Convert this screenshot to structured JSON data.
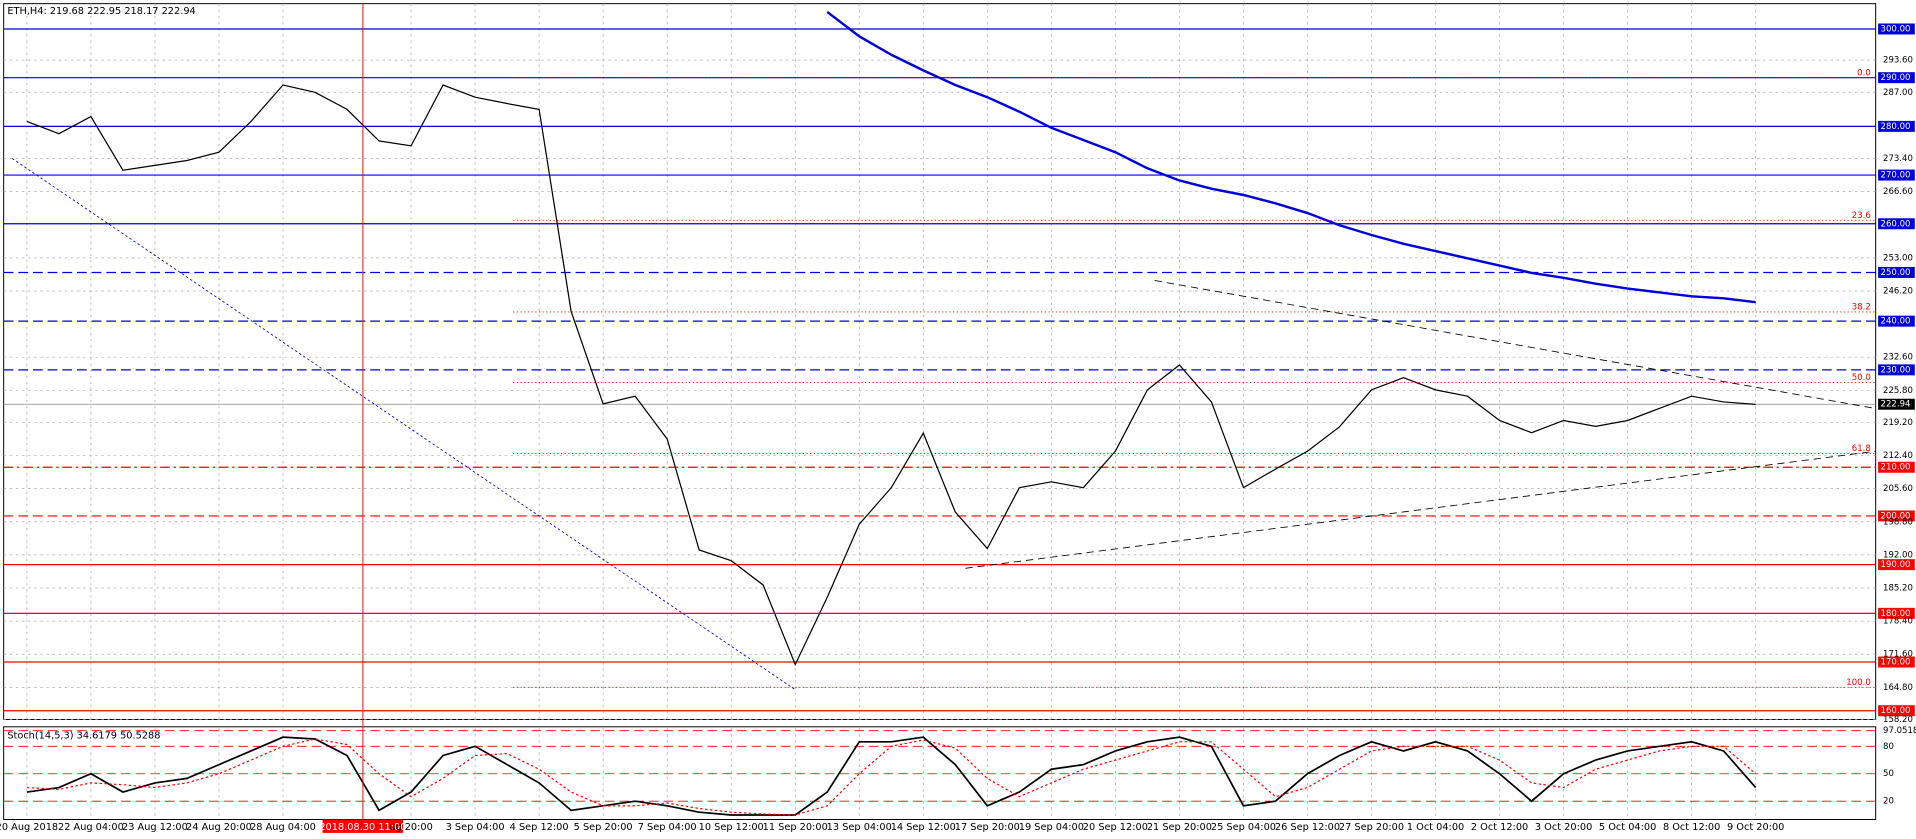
{
  "header": "ETH,H4: 219.68 222.95 218.17 222.94",
  "crosshair_label": "2018.08.30 11:00",
  "chart_data": [
    {
      "type": "line",
      "categories": [
        "20 Aug 2018",
        null,
        "22 Aug 04:00",
        null,
        "23 Aug 12:00",
        null,
        "24 Aug 20:00",
        null,
        "28 Aug 04:00",
        null,
        null,
        null,
        "ug 20:00",
        null,
        "3 Sep 04:00",
        null,
        "4 Sep 12:00",
        null,
        "5 Sep 20:00",
        null,
        "7 Sep 04:00",
        null,
        "10 Sep 12:00",
        null,
        "11 Sep 20:00",
        null,
        "13 Sep 04:00",
        null,
        "14 Sep 12:00",
        null,
        "17 Sep 20:00",
        null,
        "19 Sep 04:00",
        null,
        "20 Sep 12:00",
        null,
        "21 Sep 20:00",
        null,
        "25 Sep 04:00",
        null,
        "26 Sep 12:00",
        null,
        "27 Sep 20:00",
        null,
        "1 Oct 04:00",
        null,
        "2 Oct 12:00",
        null,
        "3 Oct 20:00",
        null,
        "5 Oct 04:00",
        null,
        "8 Oct 12:00",
        null,
        "9 Oct 20:00"
      ],
      "series": [
        {
          "color": "#000000",
          "values": [
            281,
            278.5,
            282,
            271,
            272,
            273,
            274.7,
            281,
            288.5,
            287,
            283.5,
            277,
            276,
            288.5,
            286,
            284.7,
            283.5,
            242,
            223,
            224.6,
            215.8,
            193,
            190.8,
            185.8,
            169.5,
            183.3,
            198.3,
            205.8,
            217,
            200.8,
            193.3,
            205.8,
            207,
            205.8,
            213.3,
            225.9,
            231,
            223.4,
            205.8,
            209.6,
            213.3,
            218.3,
            225.9,
            228.4,
            225.9,
            224.6,
            219.6,
            217.1,
            219.6,
            218.4,
            219.6,
            222.1,
            224.6,
            223.4,
            222.9
          ]
        },
        {
          "color": "#0000dd",
          "values": [
            null,
            null,
            null,
            null,
            null,
            null,
            null,
            null,
            null,
            null,
            null,
            null,
            null,
            null,
            null,
            null,
            null,
            null,
            null,
            null,
            null,
            null,
            null,
            null,
            null,
            303.5,
            298.5,
            294.7,
            291.5,
            288.5,
            286,
            283,
            279.7,
            277.2,
            274.7,
            271.4,
            268.9,
            267.2,
            265.9,
            264.2,
            262.2,
            259.7,
            257.7,
            255.9,
            254.4,
            252.9,
            251.4,
            249.9,
            248.9,
            247.7,
            246.7,
            245.9,
            245.1,
            244.7,
            243.9
          ]
        }
      ],
      "ylim": [
        158.2,
        305.2
      ],
      "yticks": [
        {
          "value": 293.6,
          "label": "293.60"
        },
        {
          "value": 287,
          "label": "287.00"
        },
        {
          "value": 273.4,
          "label": "273.40"
        },
        {
          "value": 266.6,
          "label": "266.60"
        },
        {
          "value": 253,
          "label": "253.00"
        },
        {
          "value": 246.2,
          "label": "246.20"
        },
        {
          "value": 232.6,
          "label": "232.60"
        },
        {
          "value": 225.8,
          "label": "225.80"
        },
        {
          "value": 219.2,
          "label": "219.20"
        },
        {
          "value": 212.4,
          "label": "212.40"
        },
        {
          "value": 205.6,
          "label": "205.60"
        },
        {
          "value": 198.8,
          "label": "198.80"
        },
        {
          "value": 192,
          "label": "192.00"
        },
        {
          "value": 185.2,
          "label": "185.20"
        },
        {
          "value": 178.4,
          "label": "178.40"
        },
        {
          "value": 171.6,
          "label": "171.60"
        },
        {
          "value": 164.8,
          "label": "164.80"
        },
        {
          "value": 158.2,
          "label": "158.20"
        }
      ],
      "levels": [
        {
          "value": 300,
          "label": "300.00",
          "color": "#0000dd",
          "style": "solid"
        },
        {
          "value": 290,
          "label": "290.00",
          "color": "#0000dd",
          "style": "solid"
        },
        {
          "value": 280,
          "label": "280.00",
          "color": "#0000dd",
          "style": "solid"
        },
        {
          "value": 270,
          "label": "270.00",
          "color": "#0000dd",
          "style": "solid"
        },
        {
          "value": 260,
          "label": "260.00",
          "color": "#0000dd",
          "style": "solid"
        },
        {
          "value": 250,
          "label": "250.00",
          "color": "#0000dd",
          "style": "dashed"
        },
        {
          "value": 240,
          "label": "240.00",
          "color": "#0000dd",
          "style": "dashed"
        },
        {
          "value": 230,
          "label": "230.00",
          "color": "#0000dd",
          "style": "dashed"
        },
        {
          "value": 210,
          "label": "210.00",
          "color": "#ff0000",
          "style": "dashdot"
        },
        {
          "value": 200,
          "label": "200.00",
          "color": "#ff0000",
          "style": "dashed"
        },
        {
          "value": 190,
          "label": "190.00",
          "color": "#ff0000",
          "style": "solid"
        },
        {
          "value": 180,
          "label": "180.00",
          "color": "#ff0000",
          "style": "solid"
        },
        {
          "value": 170,
          "label": "170.00",
          "color": "#ff0000",
          "style": "solid"
        },
        {
          "value": 160,
          "label": "160.00",
          "color": "#ff0000",
          "style": "solid"
        }
      ],
      "fib_levels": [
        {
          "value": 290,
          "label": "0.0"
        },
        {
          "value": 260.7,
          "label": "23.6"
        },
        {
          "value": 241.9,
          "label": "38.2"
        },
        {
          "value": 227.4,
          "label": "50.0"
        },
        {
          "value": 212.8,
          "label": "61.8"
        },
        {
          "value": 164.8,
          "label": "100.0"
        }
      ],
      "current_price": 222.94,
      "grid": true
    },
    {
      "type": "line",
      "title": "Stoch(14,5,3) 34.6179 50.5288",
      "series": [
        {
          "color": "#000000",
          "values": [
            30,
            35,
            50,
            30,
            40,
            45,
            60,
            75,
            90,
            88,
            70,
            10,
            30,
            70,
            80,
            60,
            40,
            10,
            15,
            20,
            15,
            8,
            5,
            5,
            5,
            30,
            85,
            85,
            90,
            60,
            15,
            30,
            55,
            60,
            75,
            85,
            90,
            80,
            15,
            20,
            50,
            70,
            85,
            75,
            85,
            75,
            50,
            20,
            50,
            65,
            75,
            80,
            85,
            75,
            35
          ]
        },
        {
          "color": "#ff0000",
          "values": [
            35,
            33,
            40,
            38,
            35,
            40,
            50,
            65,
            80,
            88,
            82,
            50,
            25,
            45,
            70,
            72,
            55,
            30,
            15,
            15,
            18,
            12,
            8,
            6,
            5,
            15,
            50,
            80,
            87,
            78,
            45,
            25,
            40,
            55,
            65,
            75,
            85,
            85,
            55,
            25,
            35,
            55,
            75,
            80,
            80,
            80,
            65,
            40,
            35,
            55,
            65,
            75,
            80,
            80,
            50
          ]
        }
      ],
      "ylim": [
        0,
        100
      ],
      "yticks": [
        97.0518,
        80,
        50,
        20
      ],
      "grid_color": "#ff0000"
    }
  ]
}
